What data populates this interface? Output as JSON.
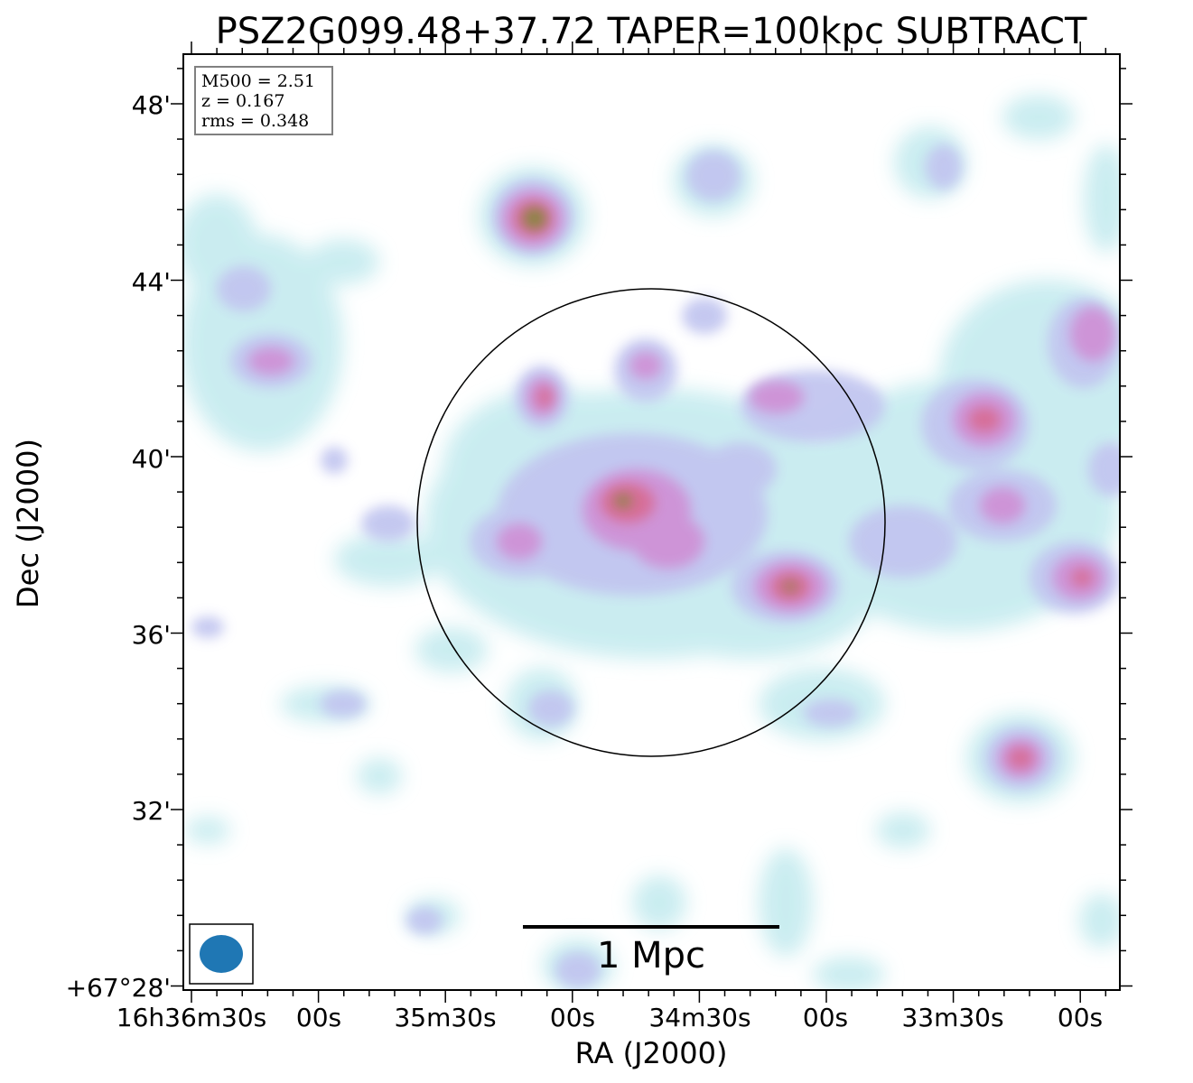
{
  "title": "PSZ2G099.48+37.72 TAPER=100kpc SUBTRACT",
  "x_axis_label": "RA (J2000)",
  "y_axis_label": "Dec (J2000)",
  "x_tick_labels": [
    "16h36m30s",
    "00s",
    "35m30s",
    "00s",
    "34m30s",
    "00s",
    "33m30s",
    "00s"
  ],
  "y_tick_labels": [
    "48'",
    "44'",
    "40'",
    "36'",
    "32'",
    "+67°28'"
  ],
  "info_box": {
    "line1": "M500 = 2.51",
    "line2": "z = 0.167",
    "line3": "rms = 0.348"
  },
  "scale_bar_label": "1 Mpc",
  "colors": {
    "beam": "#1f77b4",
    "faint": "#c8ecf0",
    "low": "#c2c6f0",
    "mid": "#cf92d6",
    "high": "#d86a92",
    "peak": "#7a8a30"
  }
}
